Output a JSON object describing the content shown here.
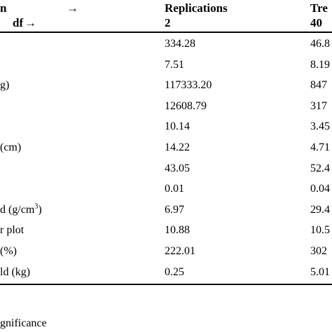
{
  "header": {
    "col0_line1": "n",
    "col0_line1_arrow": "→",
    "col0_line2": "df",
    "col0_line2_arrow": "→",
    "col1_line1": "Replications",
    "col1_line2": "2",
    "col2_line1": "Tre",
    "col2_line2": "40"
  },
  "rows": [
    {
      "label": "",
      "label_sup": "",
      "label_tail": "",
      "rep": "334.28",
      "trt": "46.8"
    },
    {
      "label": "",
      "label_sup": "",
      "label_tail": "",
      "rep": "7.51",
      "trt": "8.19"
    },
    {
      "label": "g)",
      "label_sup": "",
      "label_tail": "",
      "rep": "117333.20",
      "trt": "847"
    },
    {
      "label": "",
      "label_sup": "",
      "label_tail": "",
      "rep": "12608.79",
      "trt": "317"
    },
    {
      "label": "",
      "label_sup": "",
      "label_tail": "",
      "rep": "10.14",
      "trt": "3.45"
    },
    {
      "label": "(cm)",
      "label_sup": "",
      "label_tail": "",
      "rep": "14.22",
      "trt": "4.71"
    },
    {
      "label": "",
      "label_sup": "",
      "label_tail": "",
      "rep": "43.05",
      "trt": "52.4"
    },
    {
      "label": "",
      "label_sup": "",
      "label_tail": "",
      "rep": "0.01",
      "trt": "0.04"
    },
    {
      "label": "d (g/cm",
      "label_sup": "3",
      "label_tail": ")",
      "rep": "6.97",
      "trt": "29.4"
    },
    {
      "label": "r plot",
      "label_sup": "",
      "label_tail": "",
      "rep": "10.88",
      "trt": "10.5"
    },
    {
      "label": "(%)",
      "label_sup": "",
      "label_tail": "",
      "rep": "222.01",
      "trt": "302"
    },
    {
      "label": "ld (kg)",
      "label_sup": "",
      "label_tail": "",
      "rep": "0.25",
      "trt": "5.01"
    }
  ],
  "footnote": "gnificance"
}
